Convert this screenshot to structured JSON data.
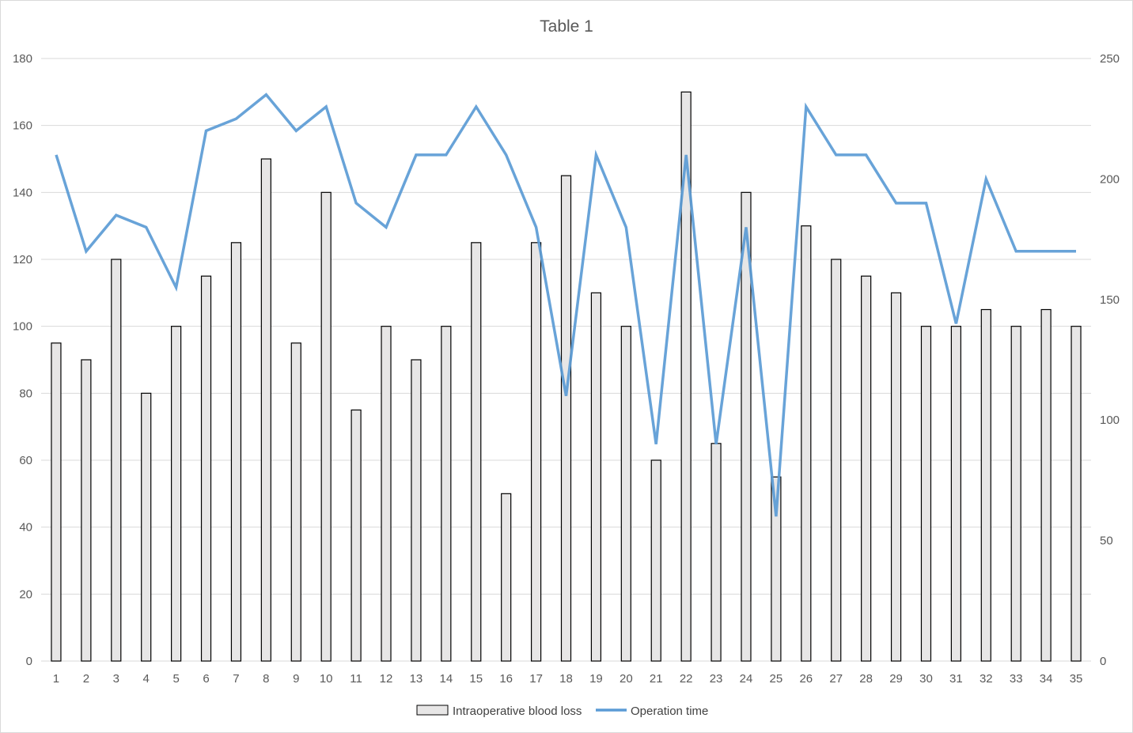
{
  "chart_data": {
    "type": "bar+line",
    "title": "Table 1",
    "categories": [
      "1",
      "2",
      "3",
      "4",
      "5",
      "6",
      "7",
      "8",
      "9",
      "10",
      "11",
      "12",
      "13",
      "14",
      "15",
      "16",
      "17",
      "18",
      "19",
      "20",
      "21",
      "22",
      "23",
      "24",
      "25",
      "26",
      "27",
      "28",
      "29",
      "30",
      "31",
      "32",
      "33",
      "34",
      "35"
    ],
    "series": [
      {
        "name": "Intraoperative blood loss",
        "type": "bar",
        "axis": "left",
        "color": "#e7e6e6",
        "border_color": "#000000",
        "values": [
          95,
          90,
          120,
          80,
          100,
          115,
          125,
          150,
          95,
          140,
          75,
          100,
          90,
          100,
          125,
          50,
          125,
          145,
          110,
          100,
          60,
          170,
          65,
          140,
          55,
          130,
          120,
          115,
          110,
          100,
          100,
          105,
          100,
          105,
          100
        ]
      },
      {
        "name": "Operation time",
        "type": "line",
        "axis": "right",
        "color": "#5b9bd5",
        "values": [
          210,
          170,
          185,
          180,
          155,
          220,
          225,
          235,
          220,
          230,
          190,
          180,
          210,
          210,
          230,
          210,
          180,
          110,
          210,
          180,
          90,
          210,
          90,
          180,
          60,
          230,
          210,
          210,
          190,
          190,
          140,
          200,
          170,
          170,
          170
        ]
      }
    ],
    "y_left": {
      "min": 0,
      "max": 180,
      "ticks": [
        0,
        20,
        40,
        60,
        80,
        100,
        120,
        140,
        160,
        180
      ]
    },
    "y_right": {
      "min": 0,
      "max": 250,
      "ticks": [
        0,
        50,
        100,
        150,
        200,
        250
      ]
    },
    "grid": true,
    "legend_position": "bottom"
  }
}
